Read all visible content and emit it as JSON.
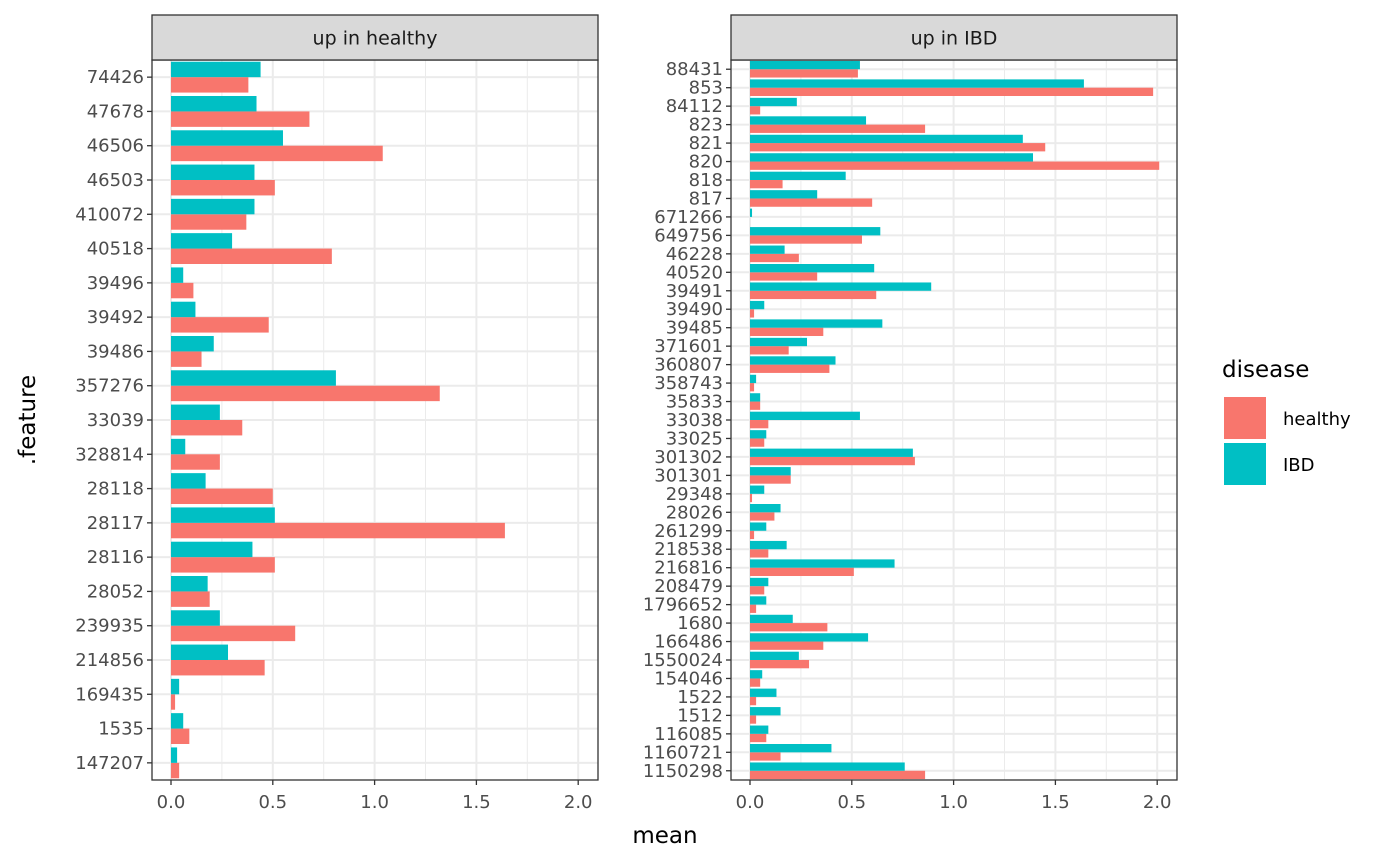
{
  "chart_data": {
    "type": "bar",
    "orientation": "horizontal",
    "xlabel": "mean",
    "ylabel": ".feature",
    "xlim": [
      0,
      2.0
    ],
    "xticks": [
      "0.0",
      "0.5",
      "1.0",
      "1.5",
      "2.0"
    ],
    "legend": {
      "title": "disease",
      "position": "right",
      "entries": [
        {
          "name": "healthy",
          "color": "#F8766D"
        },
        {
          "name": "IBD",
          "color": "#00BFC4"
        }
      ]
    },
    "grid": true,
    "panels": [
      {
        "title": "up in healthy",
        "categories": [
          "74426",
          "47678",
          "46506",
          "46503",
          "410072",
          "40518",
          "39496",
          "39492",
          "39486",
          "357276",
          "33039",
          "328814",
          "28118",
          "28117",
          "28116",
          "28052",
          "239935",
          "214856",
          "169435",
          "1535",
          "147207"
        ],
        "series": [
          {
            "name": "healthy",
            "values": [
              0.38,
              0.68,
              1.04,
              0.51,
              0.37,
              0.79,
              0.11,
              0.48,
              0.15,
              1.32,
              0.35,
              0.24,
              0.5,
              1.64,
              0.51,
              0.19,
              0.61,
              0.46,
              0.02,
              0.09,
              0.04
            ]
          },
          {
            "name": "IBD",
            "values": [
              0.44,
              0.42,
              0.55,
              0.41,
              0.41,
              0.3,
              0.06,
              0.12,
              0.21,
              0.81,
              0.24,
              0.07,
              0.17,
              0.51,
              0.4,
              0.18,
              0.24,
              0.28,
              0.04,
              0.06,
              0.03
            ]
          }
        ]
      },
      {
        "title": "up in IBD",
        "categories": [
          "88431",
          "853",
          "84112",
          "823",
          "821",
          "820",
          "818",
          "817",
          "671266",
          "649756",
          "46228",
          "40520",
          "39491",
          "39490",
          "39485",
          "371601",
          "360807",
          "358743",
          "35833",
          "33038",
          "33025",
          "301302",
          "301301",
          "29348",
          "28026",
          "261299",
          "218538",
          "216816",
          "208479",
          "1796652",
          "1680",
          "166486",
          "1550024",
          "154046",
          "1522",
          "1512",
          "116085",
          "1160721",
          "1150298"
        ],
        "series": [
          {
            "name": "healthy",
            "values": [
              0.53,
              1.98,
              0.05,
              0.86,
              1.45,
              2.01,
              0.16,
              0.6,
              0.0,
              0.55,
              0.24,
              0.33,
              0.62,
              0.02,
              0.36,
              0.19,
              0.39,
              0.02,
              0.05,
              0.09,
              0.07,
              0.81,
              0.2,
              0.01,
              0.12,
              0.02,
              0.09,
              0.51,
              0.07,
              0.03,
              0.38,
              0.36,
              0.29,
              0.05,
              0.03,
              0.03,
              0.08,
              0.15,
              0.86
            ]
          },
          {
            "name": "IBD",
            "values": [
              0.54,
              1.64,
              0.23,
              0.57,
              1.34,
              1.39,
              0.47,
              0.33,
              0.01,
              0.64,
              0.17,
              0.61,
              0.89,
              0.07,
              0.65,
              0.28,
              0.42,
              0.03,
              0.05,
              0.54,
              0.08,
              0.8,
              0.2,
              0.07,
              0.15,
              0.08,
              0.18,
              0.71,
              0.09,
              0.08,
              0.21,
              0.58,
              0.24,
              0.06,
              0.13,
              0.15,
              0.09,
              0.4,
              0.76
            ]
          }
        ]
      }
    ]
  }
}
